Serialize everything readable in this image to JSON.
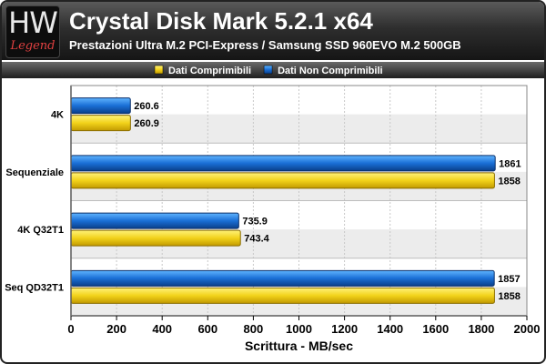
{
  "header": {
    "logo_main": "HW",
    "logo_sub": "Legend",
    "title": "Crystal Disk Mark 5.2.1 x64",
    "subtitle": "Prestazioni Ultra M.2 PCI-Express / Samsung SSD 960EVO M.2 500GB"
  },
  "chart_data": {
    "type": "bar",
    "orientation": "horizontal",
    "categories": [
      "4K",
      "Sequenziale",
      "4K Q32T1",
      "Seq QD32T1"
    ],
    "series": [
      {
        "name": "Dati Non Comprimibili",
        "color": "#1a6fd6",
        "values": [
          260.6,
          1861,
          735.9,
          1857
        ],
        "labels": [
          "260.6",
          "1861",
          "735.9",
          "1857"
        ]
      },
      {
        "name": "Dati Comprimibili",
        "color": "#f2d21a",
        "values": [
          260.9,
          1858,
          743.4,
          1858
        ],
        "labels": [
          "260.9",
          "1858",
          "743.4",
          "1858"
        ]
      }
    ],
    "legend_order": [
      "Dati Comprimibili",
      "Dati Non Comprimibili"
    ],
    "legend_position": "top",
    "xlabel": "Scrittura - MB/sec",
    "xlim": [
      0,
      2000
    ],
    "xticks": [
      0,
      200,
      400,
      600,
      800,
      1000,
      1200,
      1400,
      1600,
      1800,
      2000
    ],
    "grid": true
  }
}
